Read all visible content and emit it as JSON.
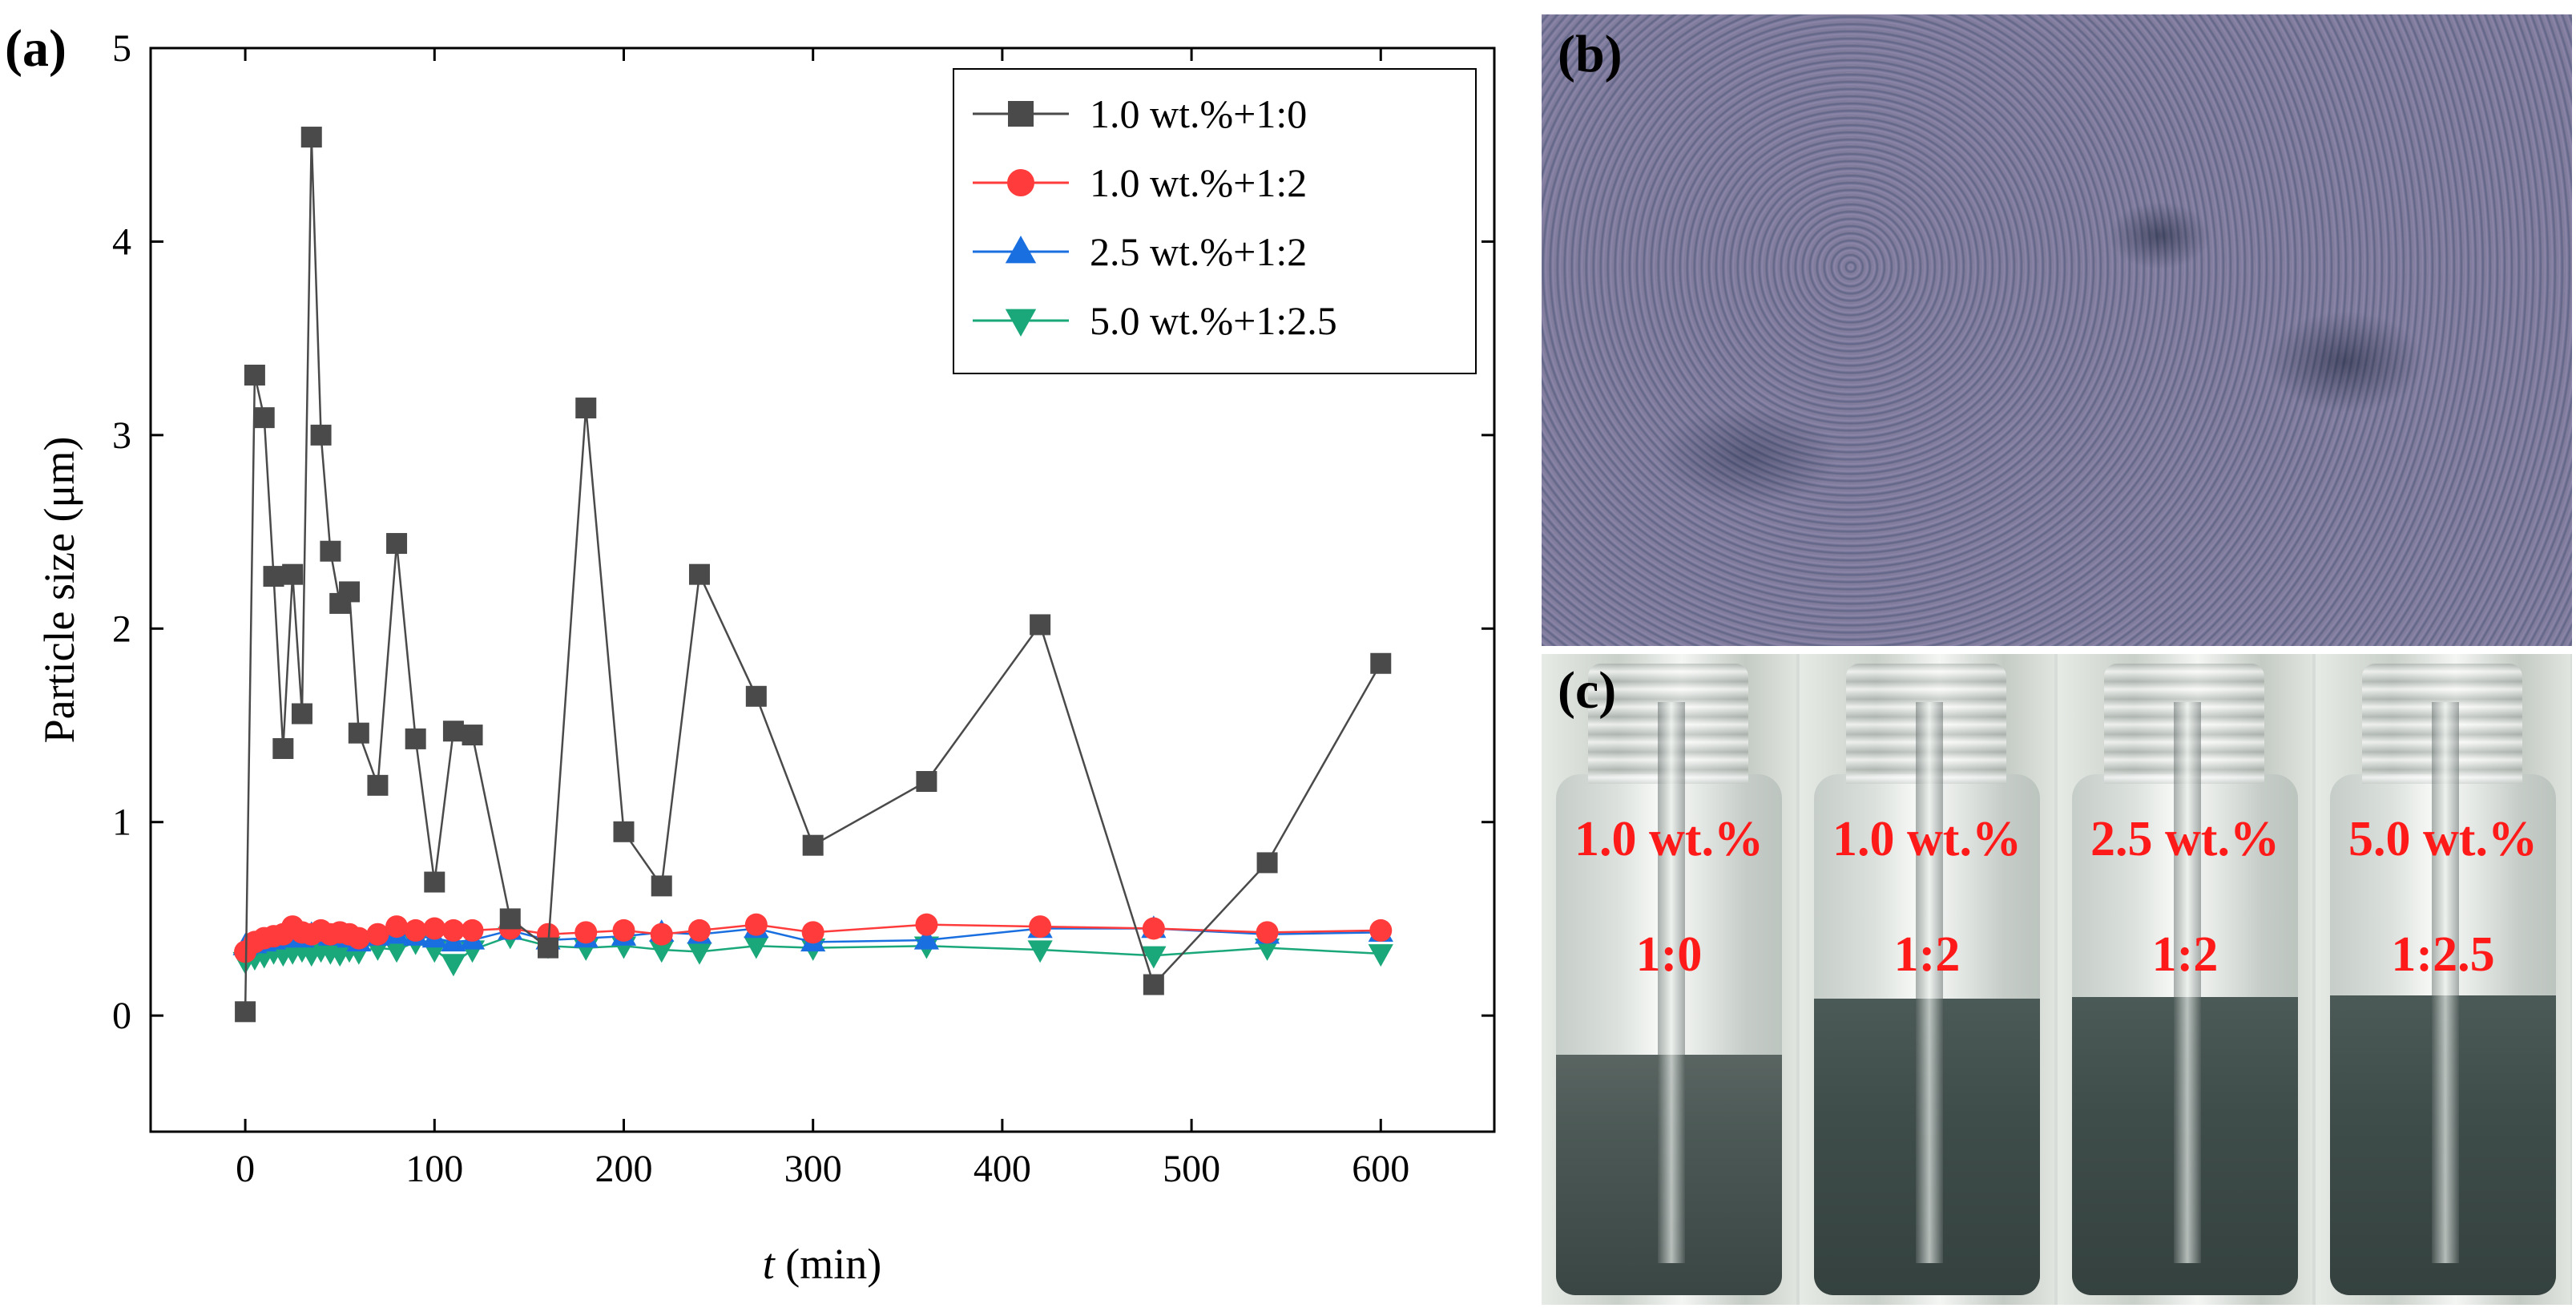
{
  "chart_data": {
    "type": "line",
    "panel_label": "(a)",
    "xlabel_italic": "t",
    "xlabel_rest": " (min)",
    "ylabel": "Particle size (μm)",
    "xlim": [
      -50,
      660
    ],
    "ylim": [
      -0.6,
      5
    ],
    "xticks": [
      0,
      100,
      200,
      300,
      400,
      500,
      600
    ],
    "yticks": [
      0,
      1,
      2,
      3,
      4,
      5
    ],
    "legend_position": "top-right",
    "series": [
      {
        "name": "1.0 wt.%+1:0",
        "marker": "square",
        "color": "#4a4a4a",
        "x": [
          0,
          5,
          10,
          15,
          20,
          25,
          30,
          35,
          40,
          45,
          50,
          55,
          60,
          70,
          80,
          90,
          100,
          110,
          120,
          140,
          160,
          180,
          200,
          220,
          240,
          270,
          300,
          360,
          420,
          480,
          540,
          600
        ],
        "y": [
          0.02,
          3.31,
          3.09,
          2.27,
          1.38,
          2.28,
          1.56,
          4.54,
          3.0,
          2.4,
          2.13,
          2.19,
          1.46,
          1.19,
          2.44,
          1.43,
          0.69,
          1.47,
          1.45,
          0.5,
          0.35,
          3.14,
          0.95,
          0.67,
          2.28,
          1.65,
          0.88,
          1.21,
          2.02,
          0.16,
          0.79,
          1.82
        ]
      },
      {
        "name": "1.0 wt.%+1:2",
        "marker": "circle",
        "color": "#ff3b3b",
        "x": [
          0,
          5,
          10,
          15,
          20,
          25,
          30,
          35,
          40,
          45,
          50,
          55,
          60,
          70,
          80,
          90,
          100,
          110,
          120,
          140,
          160,
          180,
          200,
          220,
          240,
          270,
          300,
          360,
          420,
          480,
          540,
          600
        ],
        "y": [
          0.33,
          0.38,
          0.4,
          0.41,
          0.42,
          0.46,
          0.43,
          0.42,
          0.44,
          0.42,
          0.43,
          0.42,
          0.4,
          0.42,
          0.46,
          0.44,
          0.45,
          0.44,
          0.44,
          0.45,
          0.42,
          0.43,
          0.44,
          0.42,
          0.44,
          0.47,
          0.43,
          0.47,
          0.46,
          0.45,
          0.43,
          0.44
        ]
      },
      {
        "name": "2.5 wt.%+1:2",
        "marker": "triangle-up",
        "color": "#1a6fe0",
        "x": [
          0,
          5,
          10,
          15,
          20,
          25,
          30,
          35,
          40,
          45,
          50,
          55,
          60,
          70,
          80,
          90,
          100,
          110,
          120,
          140,
          160,
          180,
          200,
          220,
          240,
          270,
          300,
          360,
          420,
          480,
          540,
          600
        ],
        "y": [
          0.36,
          0.37,
          0.38,
          0.39,
          0.4,
          0.41,
          0.4,
          0.42,
          0.43,
          0.41,
          0.42,
          0.4,
          0.38,
          0.41,
          0.42,
          0.41,
          0.4,
          0.38,
          0.39,
          0.44,
          0.39,
          0.4,
          0.41,
          0.43,
          0.42,
          0.45,
          0.38,
          0.39,
          0.45,
          0.45,
          0.42,
          0.43
        ]
      },
      {
        "name": "5.0 wt.%+1:2.5",
        "marker": "triangle-down",
        "color": "#1aa87a",
        "x": [
          0,
          5,
          10,
          15,
          20,
          25,
          30,
          35,
          40,
          45,
          50,
          55,
          60,
          70,
          80,
          90,
          100,
          110,
          120,
          140,
          160,
          180,
          200,
          220,
          240,
          270,
          300,
          360,
          420,
          480,
          540,
          600
        ],
        "y": [
          0.28,
          0.3,
          0.31,
          0.33,
          0.32,
          0.33,
          0.34,
          0.32,
          0.34,
          0.33,
          0.32,
          0.34,
          0.33,
          0.35,
          0.34,
          0.38,
          0.34,
          0.27,
          0.34,
          0.41,
          0.36,
          0.35,
          0.36,
          0.34,
          0.33,
          0.36,
          0.35,
          0.36,
          0.34,
          0.31,
          0.35,
          0.32
        ]
      }
    ]
  },
  "panel_b": {
    "label": "(b)"
  },
  "panel_c": {
    "label": "(c)",
    "vials": [
      {
        "concentration": "1.0 wt.%",
        "ratio": "1:0",
        "liquid": "low"
      },
      {
        "concentration": "1.0 wt.%",
        "ratio": "1:2",
        "liquid": "high"
      },
      {
        "concentration": "2.5 wt.%",
        "ratio": "1:2",
        "liquid": "high"
      },
      {
        "concentration": "5.0 wt.%",
        "ratio": "1:2.5",
        "liquid": "high"
      }
    ]
  }
}
